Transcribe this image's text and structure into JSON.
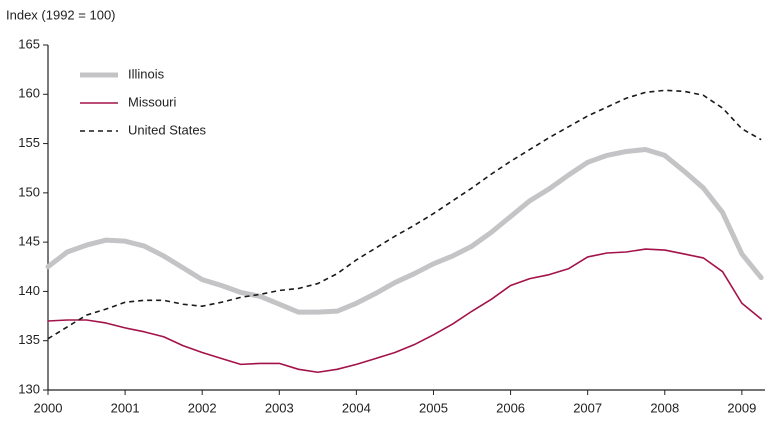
{
  "chart_data": {
    "type": "line",
    "ylabel": "Index (1992 = 100)",
    "x": [
      2000,
      2000.25,
      2000.5,
      2000.75,
      2001,
      2001.25,
      2001.5,
      2001.75,
      2002,
      2002.25,
      2002.5,
      2002.75,
      2003,
      2003.25,
      2003.5,
      2003.75,
      2004,
      2004.25,
      2004.5,
      2004.75,
      2005,
      2005.25,
      2005.5,
      2005.75,
      2006,
      2006.25,
      2006.5,
      2006.75,
      2007,
      2007.25,
      2007.5,
      2007.75,
      2008,
      2008.25,
      2008.5,
      2008.75,
      2009,
      2009.25
    ],
    "series": [
      {
        "name": "Illinois",
        "color": "#c4c4c6",
        "width": 5,
        "linestyle": "solid",
        "values": [
          142.5,
          144,
          144.7,
          145.2,
          145.1,
          144.6,
          143.6,
          142.4,
          141.2,
          140.6,
          139.9,
          139.5,
          138.7,
          137.9,
          137.9,
          138.0,
          138.8,
          139.8,
          140.9,
          141.8,
          142.8,
          143.6,
          144.6,
          146.0,
          147.6,
          149.2,
          150.4,
          151.8,
          153.1,
          153.8,
          154.2,
          154.4,
          153.8,
          152.2,
          150.5,
          148.0,
          143.8,
          141.4
        ]
      },
      {
        "name": "Missouri",
        "color": "#a3134a",
        "width": 1.6,
        "linestyle": "solid",
        "values": [
          137.0,
          137.1,
          137.1,
          136.8,
          136.3,
          135.9,
          135.4,
          134.5,
          133.8,
          133.2,
          132.6,
          132.7,
          132.7,
          132.1,
          131.8,
          132.1,
          132.6,
          133.2,
          133.8,
          134.6,
          135.6,
          136.7,
          138.0,
          139.2,
          140.6,
          141.3,
          141.7,
          142.3,
          143.5,
          143.9,
          144.0,
          144.3,
          144.2,
          143.8,
          143.4,
          142.0,
          138.8,
          137.2
        ]
      },
      {
        "name": "United States",
        "color": "#1a1a1a",
        "width": 1.6,
        "linestyle": "dashed",
        "values": [
          135.2,
          136.4,
          137.6,
          138.2,
          138.9,
          139.1,
          139.1,
          138.7,
          138.5,
          138.9,
          139.4,
          139.7,
          140.1,
          140.3,
          140.8,
          141.8,
          143.2,
          144.4,
          145.6,
          146.7,
          147.9,
          149.2,
          150.5,
          151.9,
          153.2,
          154.4,
          155.6,
          156.7,
          157.8,
          158.7,
          159.6,
          160.2,
          160.4,
          160.3,
          159.9,
          158.6,
          156.5,
          155.4
        ]
      }
    ],
    "xlim": [
      2000,
      2009.3
    ],
    "xticks": [
      2000,
      2001,
      2002,
      2003,
      2004,
      2005,
      2006,
      2007,
      2008,
      2009
    ],
    "ylim": [
      130,
      165
    ],
    "yticks": [
      130,
      135,
      140,
      145,
      150,
      155,
      160,
      165
    ],
    "grid": false,
    "legend": "upper left"
  }
}
